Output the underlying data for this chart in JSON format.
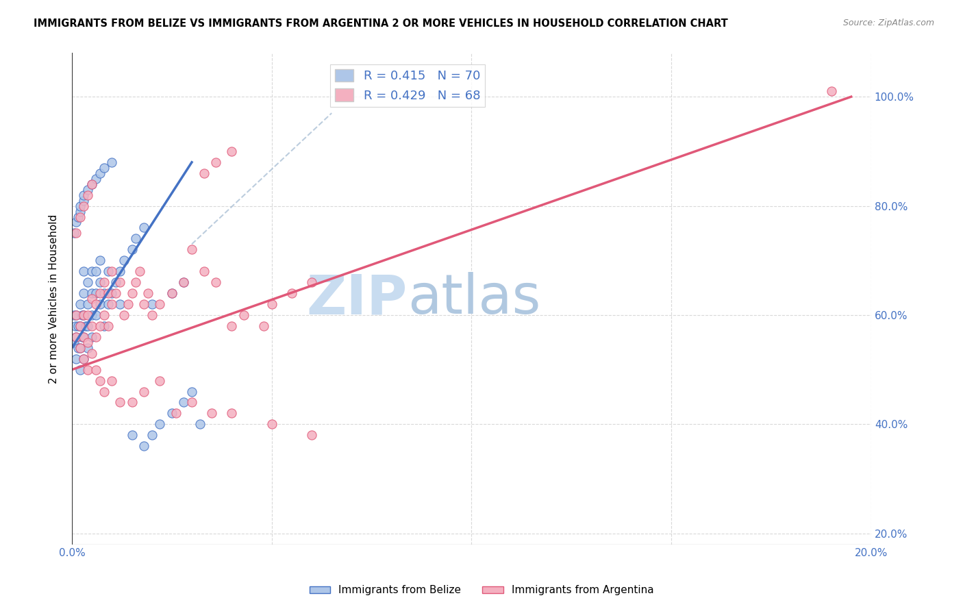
{
  "title": "IMMIGRANTS FROM BELIZE VS IMMIGRANTS FROM ARGENTINA 2 OR MORE VEHICLES IN HOUSEHOLD CORRELATION CHART",
  "source": "Source: ZipAtlas.com",
  "ylabel": "2 or more Vehicles in Household",
  "legend_label1": "R = 0.415   N = 70",
  "legend_label2": "R = 0.429   N = 68",
  "color_belize": "#aec6e8",
  "color_argentina": "#f4b0c0",
  "color_belize_line": "#4472c4",
  "color_argentina_line": "#e05878",
  "color_text_blue": "#4472c4",
  "watermark_zip": "ZIP",
  "watermark_atlas": "atlas",
  "watermark_color_zip": "#c8dcf0",
  "watermark_color_atlas": "#b0c8e0",
  "xmin": 0.0,
  "xmax": 0.2,
  "ymin": 0.18,
  "ymax": 1.08,
  "ylabel_ticks": [
    0.2,
    0.4,
    0.6,
    0.8,
    1.0
  ],
  "ylabel_labels": [
    "20.0%",
    "40.0%",
    "60.0%",
    "80.0%",
    "100.0%"
  ],
  "belize_x": [
    0.0005,
    0.0005,
    0.0008,
    0.001,
    0.001,
    0.001,
    0.0015,
    0.0015,
    0.002,
    0.002,
    0.002,
    0.002,
    0.0025,
    0.0025,
    0.003,
    0.003,
    0.003,
    0.003,
    0.003,
    0.0035,
    0.004,
    0.004,
    0.004,
    0.004,
    0.005,
    0.005,
    0.005,
    0.005,
    0.006,
    0.006,
    0.006,
    0.007,
    0.007,
    0.007,
    0.008,
    0.008,
    0.009,
    0.009,
    0.01,
    0.011,
    0.012,
    0.013,
    0.015,
    0.016,
    0.018,
    0.02,
    0.022,
    0.025,
    0.028,
    0.03,
    0.0005,
    0.001,
    0.0015,
    0.002,
    0.002,
    0.003,
    0.003,
    0.004,
    0.005,
    0.006,
    0.007,
    0.008,
    0.01,
    0.012,
    0.015,
    0.018,
    0.02,
    0.025,
    0.028,
    0.032
  ],
  "belize_y": [
    0.55,
    0.6,
    0.58,
    0.52,
    0.56,
    0.6,
    0.54,
    0.58,
    0.5,
    0.54,
    0.58,
    0.62,
    0.56,
    0.6,
    0.52,
    0.56,
    0.6,
    0.64,
    0.68,
    0.58,
    0.54,
    0.58,
    0.62,
    0.66,
    0.56,
    0.6,
    0.64,
    0.68,
    0.6,
    0.64,
    0.68,
    0.62,
    0.66,
    0.7,
    0.58,
    0.64,
    0.62,
    0.68,
    0.64,
    0.66,
    0.68,
    0.7,
    0.72,
    0.74,
    0.76,
    0.38,
    0.4,
    0.42,
    0.44,
    0.46,
    0.75,
    0.77,
    0.78,
    0.79,
    0.8,
    0.81,
    0.82,
    0.83,
    0.84,
    0.85,
    0.86,
    0.87,
    0.88,
    0.62,
    0.38,
    0.36,
    0.62,
    0.64,
    0.66,
    0.4
  ],
  "argentina_x": [
    0.001,
    0.001,
    0.002,
    0.002,
    0.003,
    0.003,
    0.003,
    0.004,
    0.004,
    0.004,
    0.005,
    0.005,
    0.005,
    0.006,
    0.006,
    0.007,
    0.007,
    0.008,
    0.008,
    0.009,
    0.009,
    0.01,
    0.01,
    0.011,
    0.012,
    0.013,
    0.014,
    0.015,
    0.016,
    0.017,
    0.018,
    0.019,
    0.02,
    0.022,
    0.025,
    0.028,
    0.03,
    0.033,
    0.036,
    0.04,
    0.043,
    0.048,
    0.05,
    0.055,
    0.06,
    0.001,
    0.002,
    0.003,
    0.004,
    0.005,
    0.006,
    0.007,
    0.008,
    0.01,
    0.012,
    0.015,
    0.018,
    0.022,
    0.026,
    0.03,
    0.035,
    0.04,
    0.05,
    0.06,
    0.19,
    0.033,
    0.036,
    0.04
  ],
  "argentina_y": [
    0.56,
    0.6,
    0.54,
    0.58,
    0.52,
    0.56,
    0.6,
    0.5,
    0.55,
    0.6,
    0.53,
    0.58,
    0.63,
    0.56,
    0.62,
    0.58,
    0.64,
    0.6,
    0.66,
    0.58,
    0.64,
    0.62,
    0.68,
    0.64,
    0.66,
    0.6,
    0.62,
    0.64,
    0.66,
    0.68,
    0.62,
    0.64,
    0.6,
    0.62,
    0.64,
    0.66,
    0.72,
    0.68,
    0.66,
    0.58,
    0.6,
    0.58,
    0.62,
    0.64,
    0.66,
    0.75,
    0.78,
    0.8,
    0.82,
    0.84,
    0.5,
    0.48,
    0.46,
    0.48,
    0.44,
    0.44,
    0.46,
    0.48,
    0.42,
    0.44,
    0.42,
    0.42,
    0.4,
    0.38,
    1.01,
    0.86,
    0.88,
    0.9
  ],
  "belize_line_x": [
    0.0,
    0.03
  ],
  "belize_line_y": [
    0.54,
    0.88
  ],
  "argentina_line_x": [
    0.0,
    0.195
  ],
  "argentina_line_y": [
    0.5,
    1.0
  ],
  "dash_line_x": [
    0.03,
    0.065
  ],
  "dash_line_y": [
    0.73,
    0.97
  ]
}
